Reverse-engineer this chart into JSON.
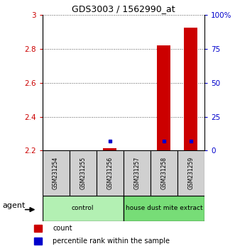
{
  "title": "GDS3003 / 1562990_at",
  "samples": [
    "GSM231254",
    "GSM231255",
    "GSM231256",
    "GSM231257",
    "GSM231258",
    "GSM231259"
  ],
  "groups": [
    {
      "label": "control",
      "color": "#b3f0b3",
      "samples": [
        0,
        1,
        2
      ]
    },
    {
      "label": "house dust mite extract",
      "color": "#77dd77",
      "samples": [
        3,
        4,
        5
      ]
    }
  ],
  "count_values": [
    2.2,
    2.2,
    2.213,
    2.2,
    2.82,
    2.925
  ],
  "percentile_values": [
    null,
    null,
    2.258,
    null,
    2.258,
    2.258
  ],
  "ylim_left": [
    2.2,
    3.0
  ],
  "ylim_right": [
    0,
    100
  ],
  "yticks_left": [
    2.2,
    2.4,
    2.6,
    2.8,
    3.0
  ],
  "yticks_right": [
    0,
    25,
    50,
    75,
    100
  ],
  "ytick_labels_left": [
    "2.2",
    "2.4",
    "2.6",
    "2.8",
    "3"
  ],
  "ytick_labels_right": [
    "0",
    "25",
    "50",
    "75",
    "100%"
  ],
  "bar_color": "#cc0000",
  "percentile_color": "#0000cc",
  "bar_width": 0.5,
  "agent_label": "agent",
  "grid_color": "#888888",
  "left_tick_color": "#cc0000",
  "right_tick_color": "#0000cc",
  "sample_box_color": "#d0d0d0",
  "legend_count": "count",
  "legend_perc": "percentile rank within the sample"
}
